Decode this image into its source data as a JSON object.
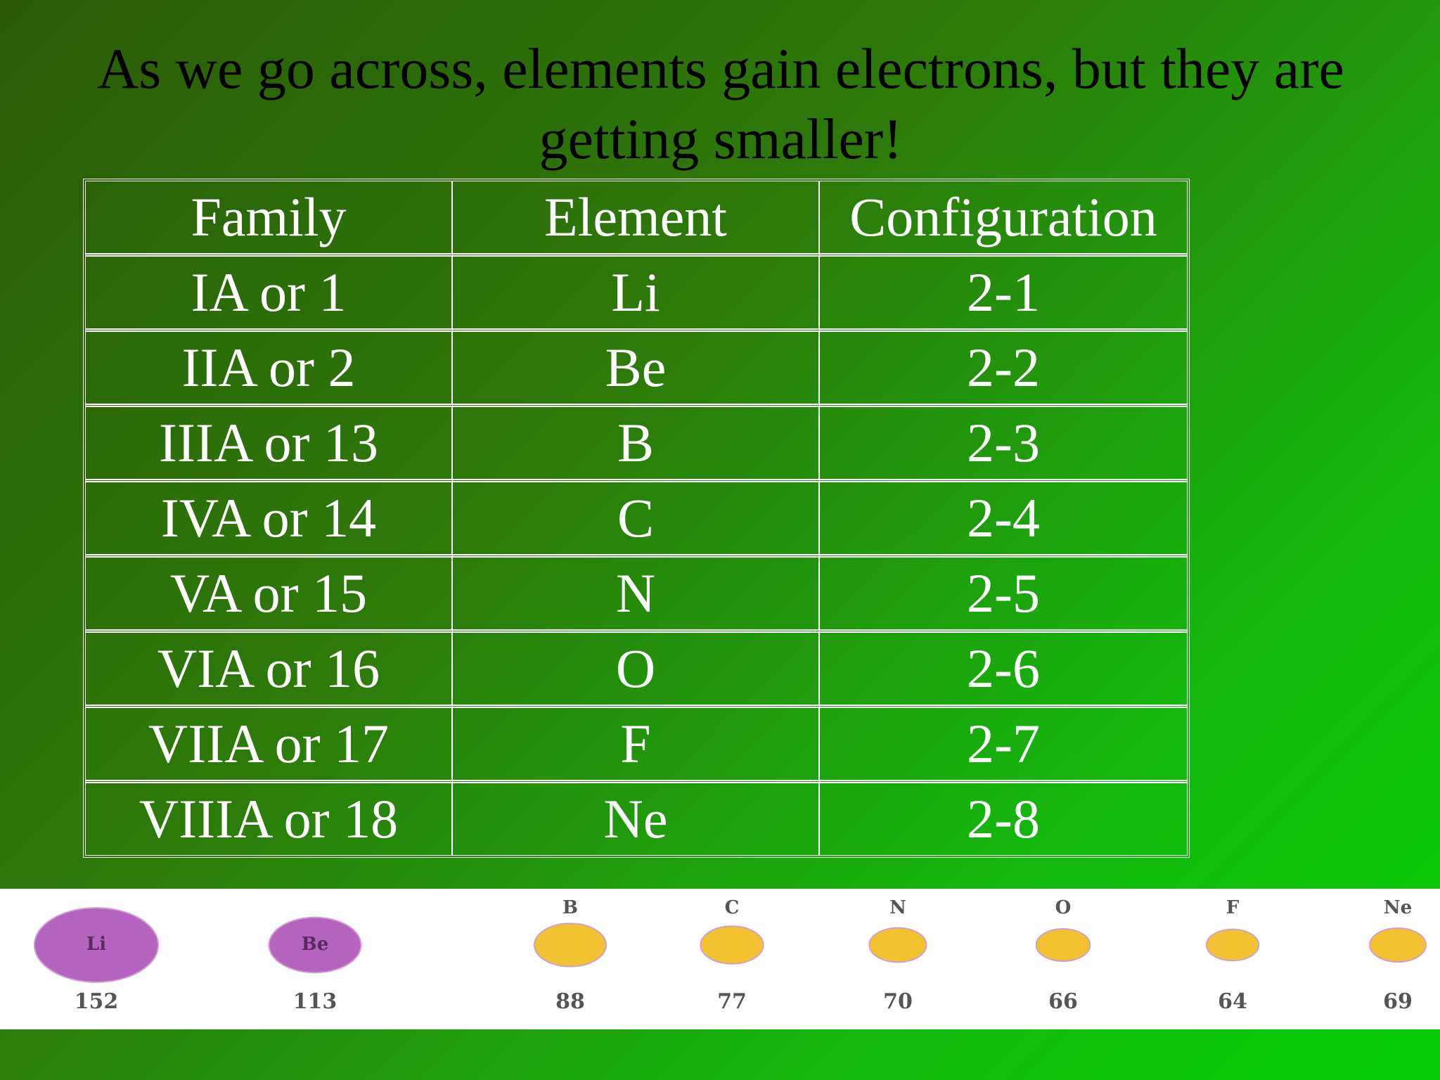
{
  "title": "As we go across, elements gain electrons, but they are getting smaller!",
  "table": {
    "header": [
      "Family",
      "Element",
      "Configuration"
    ],
    "rows": [
      [
        "IA or 1",
        "Li",
        "2-1"
      ],
      [
        "IIA or 2",
        "Be",
        "2-2"
      ],
      [
        "IIIA or 13",
        "B",
        "2-3"
      ],
      [
        "IVA or 14",
        "C",
        "2-4"
      ],
      [
        "VA or 15",
        "N",
        "2-5"
      ],
      [
        "VIA or 16",
        "O",
        "2-6"
      ],
      [
        "VIIA or 17",
        "F",
        "2-7"
      ],
      [
        "VIIIA or 18",
        "Ne",
        "2-8"
      ]
    ]
  },
  "atoms": [
    {
      "symbol": "Li",
      "radius": 152,
      "color": "#b464be"
    },
    {
      "symbol": "Be",
      "radius": 113,
      "color": "#b464be"
    },
    {
      "symbol": "B",
      "radius": 88,
      "color": "#f2c230"
    },
    {
      "symbol": "C",
      "radius": 77,
      "color": "#f2c230"
    },
    {
      "symbol": "N",
      "radius": 70,
      "color": "#f2c230"
    },
    {
      "symbol": "O",
      "radius": 66,
      "color": "#f2c230"
    },
    {
      "symbol": "F",
      "radius": 64,
      "color": "#f2c230"
    },
    {
      "symbol": "Ne",
      "radius": 69,
      "color": "#f2c230"
    }
  ]
}
